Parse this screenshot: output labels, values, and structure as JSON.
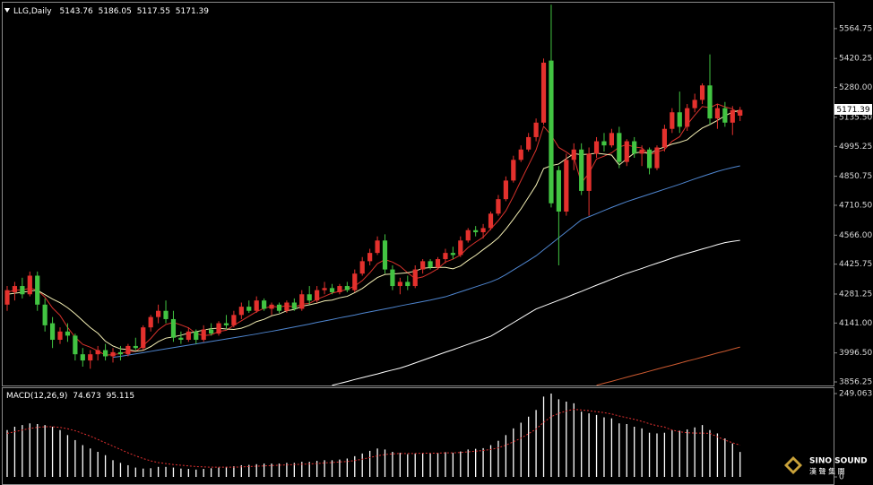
{
  "chart_data": [
    {
      "type": "candlestick",
      "title": "LLG,Daily",
      "open": [
        4230,
        4290,
        4320,
        4280,
        4370,
        4230,
        4140,
        4060,
        4100,
        4080,
        3990,
        3960,
        3990,
        4010,
        3980,
        4000,
        3990,
        4030,
        4020,
        4120,
        4170,
        4200,
        4160,
        4070,
        4060,
        4100,
        4060,
        4110,
        4090,
        4140,
        4130,
        4180,
        4220,
        4200,
        4250,
        4210,
        4230,
        4200,
        4240,
        4210,
        4280,
        4250,
        4300,
        4310,
        4290,
        4320,
        4300,
        4380,
        4440,
        4480,
        4540,
        4400,
        4320,
        4340,
        4320,
        4400,
        4440,
        4410,
        4450,
        4480,
        4470,
        4540,
        4590,
        4580,
        4600,
        4670,
        4740,
        4830,
        4930,
        4980,
        5040,
        5110,
        5410,
        4880,
        4680,
        4930,
        4980,
        4780,
        4960,
        5020,
        5000,
        5060,
        4920,
        5020,
        4960,
        4980,
        4890,
        4990,
        5080,
        5160,
        5090,
        5180,
        5220,
        5290,
        5130,
        5180,
        5110,
        5143.76
      ],
      "high": [
        4320,
        4340,
        4360,
        4390,
        4390,
        4260,
        4170,
        4120,
        4140,
        4090,
        4020,
        4010,
        4030,
        4040,
        4020,
        4030,
        4040,
        4070,
        4130,
        4180,
        4230,
        4250,
        4200,
        4100,
        4120,
        4110,
        4130,
        4140,
        4150,
        4180,
        4200,
        4240,
        4250,
        4270,
        4260,
        4240,
        4240,
        4250,
        4260,
        4300,
        4320,
        4320,
        4340,
        4330,
        4330,
        4340,
        4400,
        4460,
        4500,
        4560,
        4570,
        4420,
        4360,
        4370,
        4420,
        4450,
        4450,
        4460,
        4500,
        4510,
        4560,
        4600,
        4610,
        4620,
        4680,
        4760,
        4850,
        4950,
        5000,
        5060,
        5130,
        5420,
        5680,
        4900,
        4960,
        5010,
        5010,
        4990,
        5040,
        5060,
        5080,
        5090,
        5030,
        5040,
        5000,
        4990,
        5000,
        5100,
        5180,
        5260,
        5200,
        5250,
        5300,
        5440,
        5200,
        5210,
        5190,
        5186.05
      ],
      "low": [
        4200,
        4250,
        4260,
        4270,
        4200,
        4100,
        4020,
        4040,
        4050,
        3960,
        3930,
        3920,
        3960,
        3960,
        3950,
        3960,
        3980,
        4010,
        4010,
        4100,
        4140,
        4140,
        4050,
        4040,
        4050,
        4040,
        4050,
        4080,
        4080,
        4110,
        4120,
        4160,
        4190,
        4190,
        4200,
        4180,
        4190,
        4190,
        4200,
        4200,
        4230,
        4240,
        4280,
        4280,
        4280,
        4290,
        4290,
        4370,
        4420,
        4470,
        4380,
        4300,
        4280,
        4300,
        4310,
        4380,
        4400,
        4400,
        4430,
        4450,
        4460,
        4530,
        4560,
        4550,
        4590,
        4660,
        4730,
        4820,
        4920,
        4970,
        5020,
        5100,
        4700,
        4420,
        4660,
        4880,
        4760,
        4660,
        4940,
        4970,
        4990,
        4890,
        4900,
        4940,
        4900,
        4860,
        4880,
        4970,
        5060,
        5060,
        5070,
        5160,
        5200,
        5100,
        5080,
        5090,
        5050,
        5117.55
      ],
      "close": [
        4300,
        4320,
        4280,
        4370,
        4230,
        4130,
        4060,
        4100,
        4080,
        3990,
        3960,
        3990,
        4010,
        3980,
        4000,
        3990,
        4030,
        4020,
        4120,
        4170,
        4200,
        4160,
        4070,
        4060,
        4100,
        4060,
        4110,
        4090,
        4140,
        4130,
        4180,
        4220,
        4200,
        4250,
        4210,
        4230,
        4200,
        4240,
        4210,
        4280,
        4250,
        4300,
        4310,
        4290,
        4320,
        4300,
        4380,
        4440,
        4480,
        4540,
        4400,
        4320,
        4340,
        4320,
        4400,
        4440,
        4410,
        4450,
        4480,
        4470,
        4540,
        4590,
        4580,
        4600,
        4670,
        4740,
        4830,
        4930,
        4980,
        5040,
        5110,
        5400,
        4720,
        4680,
        4930,
        4980,
        4780,
        4960,
        5020,
        5000,
        5060,
        4920,
        5020,
        4960,
        4980,
        4890,
        4990,
        5080,
        5160,
        5090,
        5180,
        5220,
        5290,
        5130,
        5180,
        5110,
        5170,
        5171.39
      ],
      "up_color": "#e4312d",
      "down_color": "#42c442",
      "series": [
        {
          "color": "#d8322c",
          "values": [
            4290,
            4300,
            4300,
            4310,
            4300,
            4266,
            4214,
            4178,
            4120,
            4072,
            4038,
            4024,
            4006,
            3986,
            3988,
            3994,
            4002,
            4004,
            4032,
            4066,
            4108,
            4134,
            4144,
            4132,
            4118,
            4090,
            4080,
            4084,
            4100,
            4106,
            4130,
            4152,
            4174,
            4196,
            4212,
            4222,
            4218,
            4226,
            4218,
            4232,
            4236,
            4256,
            4270,
            4286,
            4294,
            4304,
            4320,
            4346,
            4384,
            4428,
            4448,
            4436,
            4416,
            4384,
            4356,
            4364,
            4382,
            4404,
            4436,
            4450,
            4470,
            4506,
            4532,
            4556,
            4596,
            4636,
            4684,
            4754,
            4830,
            4904,
            4978,
            5092,
            5050,
            4990,
            4968,
            4942,
            4818,
            4866,
            4934,
            4948,
            4964,
            4992,
            5004,
            4992,
            4988,
            4954,
            4968,
            4980,
            5020,
            5042,
            5100,
            5146,
            5188,
            5182,
            5200,
            5186,
            5176,
            5152
          ]
        },
        {
          "color": "#f4efb4",
          "values": [
            4280,
            4285,
            4290,
            4295,
            4300,
            4278,
            4257,
            4239,
            4215,
            4186,
            4152,
            4119,
            4092,
            4053,
            4030,
            4016,
            4013,
            4005,
            4009,
            4027,
            4051,
            4068,
            4074,
            4082,
            4092,
            4099,
            4107,
            4114,
            4116,
            4112,
            4110,
            4116,
            4129,
            4148,
            4159,
            4176,
            4185,
            4200,
            4207,
            4222,
            4229,
            4237,
            4248,
            4252,
            4263,
            4270,
            4288,
            4308,
            4335,
            4361,
            4376,
            4378,
            4381,
            4384,
            4392,
            4406,
            4409,
            4410,
            4410,
            4403,
            4417,
            4444,
            4468,
            4496,
            4523,
            4553,
            4595,
            4643,
            4693,
            4750,
            4807,
            4888,
            4902,
            4910,
            4936,
            4960,
            4955,
            4958,
            4962,
            4958,
            4953,
            4905,
            4935,
            4963,
            4968,
            4959,
            4980,
            4992,
            5006,
            5015,
            5027,
            5057,
            5084,
            5101,
            5121,
            5143,
            5161,
            5170
          ]
        },
        {
          "color": "#4f86d0",
          "values": [
            null,
            null,
            null,
            null,
            null,
            null,
            null,
            null,
            null,
            null,
            null,
            null,
            null,
            null,
            3975,
            3980,
            3986,
            3992,
            3998,
            4004,
            4010,
            4016,
            4022,
            4028,
            4034,
            4040,
            4046,
            4052,
            4058,
            4064,
            4070,
            4076,
            4082,
            4088,
            4095,
            4101,
            4108,
            4115,
            4122,
            4129,
            4136,
            4144,
            4151,
            4158,
            4166,
            4173,
            4180,
            4188,
            4195,
            4202,
            4209,
            4216,
            4224,
            4231,
            4238,
            4245,
            4252,
            4260,
            4268,
            4280,
            4292,
            4304,
            4316,
            4328,
            4340,
            4355,
            4375,
            4398,
            4420,
            4443,
            4466,
            4495,
            4524,
            4553,
            4582,
            4611,
            4640,
            4655,
            4670,
            4685,
            4700,
            4714,
            4728,
            4740,
            4752,
            4764,
            4776,
            4788,
            4800,
            4812,
            4825,
            4838,
            4850,
            4862,
            4874,
            4884,
            4893,
            4901
          ]
        },
        {
          "color": "#ffffff",
          "values": [
            null,
            null,
            null,
            null,
            null,
            null,
            null,
            null,
            null,
            null,
            null,
            null,
            null,
            null,
            null,
            null,
            null,
            null,
            null,
            null,
            null,
            null,
            null,
            null,
            null,
            null,
            null,
            null,
            null,
            null,
            null,
            null,
            null,
            null,
            null,
            null,
            null,
            null,
            null,
            null,
            null,
            null,
            null,
            3840,
            3849,
            3858,
            3868,
            3877,
            3886,
            3895,
            3905,
            3914,
            3923,
            3935,
            3948,
            3961,
            3974,
            3987,
            4000,
            4012,
            4025,
            4038,
            4051,
            4064,
            4077,
            4099,
            4121,
            4143,
            4165,
            4187,
            4209,
            4223,
            4237,
            4251,
            4265,
            4280,
            4294,
            4309,
            4324,
            4338,
            4353,
            4367,
            4381,
            4393,
            4405,
            4418,
            4430,
            4442,
            4455,
            4467,
            4478,
            4488,
            4499,
            4509,
            4520,
            4530,
            4536,
            4541
          ]
        },
        {
          "color": "#cc5a30",
          "values": [
            null,
            null,
            null,
            null,
            null,
            null,
            null,
            null,
            null,
            null,
            null,
            null,
            null,
            null,
            null,
            null,
            null,
            null,
            null,
            null,
            null,
            null,
            null,
            null,
            null,
            null,
            null,
            null,
            null,
            null,
            null,
            null,
            null,
            null,
            null,
            null,
            null,
            null,
            null,
            null,
            null,
            null,
            null,
            null,
            null,
            null,
            null,
            null,
            null,
            null,
            null,
            null,
            null,
            null,
            null,
            null,
            null,
            null,
            null,
            null,
            null,
            null,
            null,
            null,
            null,
            null,
            null,
            null,
            null,
            null,
            null,
            null,
            null,
            null,
            null,
            null,
            null,
            null,
            3840,
            3850,
            3859,
            3869,
            3879,
            3889,
            3898,
            3908,
            3918,
            3928,
            3937,
            3947,
            3957,
            3966,
            3976,
            3986,
            3996,
            4005,
            4015,
            4025
          ]
        }
      ],
      "ylim": [
        3839,
        5690
      ],
      "yticks": [
        3856.25,
        {
          "value": 3996.5,
          "label": "3996.50"
        },
        {
          "value": 4141,
          "label": "4141.00"
        },
        4281.25,
        4425.75,
        {
          "value": 4566,
          "label": "4566.00"
        },
        {
          "value": 4710.5,
          "label": "4710.50"
        },
        4850.75,
        4995.25,
        {
          "value": 5135.5,
          "label": "5135.50"
        },
        {
          "value": 5280,
          "label": "5280.00"
        },
        5420.25,
        5564.75
      ]
    },
    {
      "type": "macd",
      "title": "MACD(12,26,9)",
      "color": "#ffffff",
      "values": [
        140,
        150,
        155,
        160,
        158,
        155,
        150,
        140,
        125,
        110,
        95,
        85,
        75,
        65,
        50,
        42,
        35,
        28,
        25,
        26,
        30,
        30,
        28,
        25,
        24,
        22,
        24,
        26,
        28,
        30,
        32,
        35,
        36,
        38,
        40,
        40,
        40,
        42,
        42,
        45,
        45,
        48,
        50,
        50,
        52,
        55,
        62,
        70,
        78,
        85,
        82,
        75,
        72,
        68,
        70,
        72,
        70,
        72,
        74,
        72,
        76,
        82,
        84,
        86,
        95,
        108,
        125,
        145,
        162,
        180,
        200,
        240,
        249,
        232,
        225,
        220,
        195,
        190,
        185,
        178,
        175,
        160,
        158,
        150,
        145,
        132,
        130,
        132,
        140,
        138,
        142,
        148,
        155,
        140,
        130,
        115,
        100,
        74.673
      ],
      "signal": {
        "color": "#e03030",
        "values": [
          130,
          135,
          140,
          145,
          148,
          150,
          150,
          148,
          144,
          138,
          130,
          122,
          112,
          102,
          92,
          82,
          72,
          63,
          55,
          48,
          43,
          40,
          37,
          35,
          33,
          31,
          30,
          29,
          29,
          29,
          29,
          30,
          31,
          32,
          33,
          34,
          35,
          36,
          37,
          38,
          39,
          40,
          42,
          43,
          45,
          46,
          49,
          53,
          58,
          63,
          67,
          69,
          70,
          70,
          70,
          71,
          71,
          71,
          72,
          72,
          73,
          75,
          77,
          79,
          82,
          87,
          95,
          105,
          116,
          129,
          143,
          163,
          180,
          190,
          197,
          202,
          200,
          198,
          195,
          192,
          188,
          182,
          177,
          172,
          166,
          159,
          153,
          149,
          140,
          135,
          132,
          131,
          131,
          130,
          120,
          110,
          102,
          95.115
        ]
      },
      "ylim": [
        -18.7,
        265.1
      ],
      "yticks": [
        0,
        249.063
      ]
    }
  ],
  "logo": {
    "name": "SINO SOUND",
    "subtitle": "漢 聲 集 團"
  }
}
